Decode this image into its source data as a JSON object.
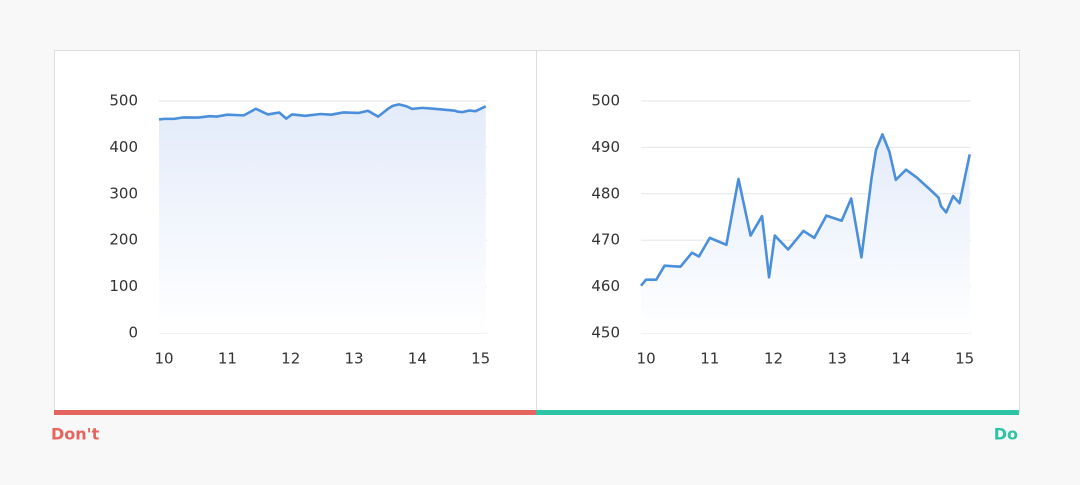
{
  "chart_data": [
    {
      "type": "line",
      "x": [
        9.92,
        10,
        10.16,
        10.29,
        10.54,
        10.72,
        10.83,
        11.0,
        11.26,
        11.45,
        11.64,
        11.82,
        11.93,
        12.02,
        12.23,
        12.47,
        12.64,
        12.83,
        13.07,
        13.22,
        13.38,
        13.54,
        13.61,
        13.71,
        13.82,
        13.92,
        14.08,
        14.25,
        14.49,
        14.59,
        14.63,
        14.71,
        14.82,
        14.92,
        15.08
      ],
      "series": [
        {
          "color": "#4a8fdb",
          "values": [
            460.2,
            461.5,
            461.5,
            464.5,
            464.3,
            467.3,
            466.5,
            470.5,
            469,
            483.2,
            471,
            475.2,
            462,
            471,
            468,
            472,
            470.5,
            475.3,
            474.2,
            479,
            466.3,
            483.5,
            489.5,
            492.8,
            489,
            483,
            485.2,
            483.5,
            480.5,
            479.2,
            477.3,
            476,
            479.5,
            478,
            488.5
          ]
        }
      ],
      "xlim": [
        9.92,
        15.1
      ],
      "xticks": [
        10,
        11,
        12,
        13,
        14,
        15
      ],
      "ylim": [
        0,
        500
      ],
      "yticks": [
        0,
        100,
        200,
        300,
        400,
        500
      ],
      "grid": true
    },
    {
      "type": "line",
      "x": [
        9.92,
        10,
        10.16,
        10.29,
        10.54,
        10.72,
        10.83,
        11.0,
        11.26,
        11.45,
        11.64,
        11.82,
        11.93,
        12.02,
        12.23,
        12.47,
        12.64,
        12.83,
        13.07,
        13.22,
        13.38,
        13.54,
        13.61,
        13.71,
        13.82,
        13.92,
        14.08,
        14.25,
        14.49,
        14.59,
        14.63,
        14.71,
        14.82,
        14.92,
        15.08
      ],
      "series": [
        {
          "color": "#4a8fdb",
          "values": [
            460.2,
            461.5,
            461.5,
            464.5,
            464.3,
            467.3,
            466.5,
            470.5,
            469,
            483.2,
            471,
            475.2,
            462,
            471,
            468,
            472,
            470.5,
            475.3,
            474.2,
            479,
            466.3,
            483.5,
            489.5,
            492.8,
            489,
            483,
            485.2,
            483.5,
            480.5,
            479.2,
            477.3,
            476,
            479.5,
            478,
            488.5
          ]
        }
      ],
      "xlim": [
        9.92,
        15.1
      ],
      "xticks": [
        10,
        11,
        12,
        13,
        14,
        15
      ],
      "ylim": [
        450,
        500
      ],
      "yticks": [
        450,
        460,
        470,
        480,
        490,
        500
      ],
      "grid": true
    }
  ],
  "captions": {
    "dont": "Don't",
    "do": "Do"
  }
}
